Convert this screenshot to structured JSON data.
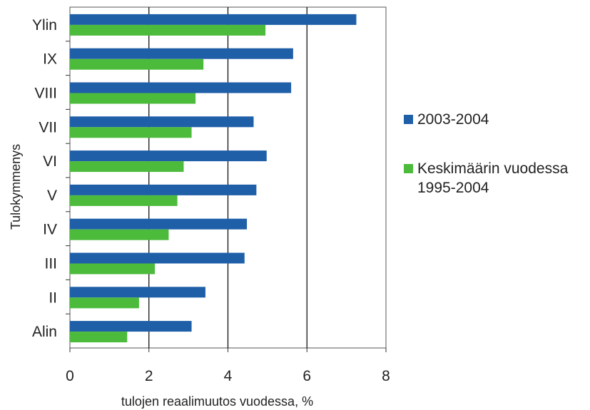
{
  "chart_data": {
    "type": "bar",
    "orientation": "horizontal",
    "title": "",
    "xlabel": "tulojen reaalimuutos vuodessa, %",
    "ylabel": "Tulokymmenys",
    "categories": [
      "Ylin",
      "IX",
      "VIII",
      "VII",
      "VI",
      "V",
      "IV",
      "III",
      "II",
      "Alin"
    ],
    "series": [
      {
        "name": "2003-2004",
        "color": "#1f5fa8",
        "values": [
          7.25,
          5.65,
          5.6,
          4.65,
          4.98,
          4.72,
          4.48,
          4.42,
          3.43,
          3.08
        ]
      },
      {
        "name": "Keskimäärin vuodessa\n1995-2004",
        "color": "#4cbb3c",
        "values": [
          4.95,
          3.38,
          3.18,
          3.08,
          2.88,
          2.72,
          2.5,
          2.15,
          1.75,
          1.45
        ]
      }
    ],
    "xlim": [
      0,
      8
    ],
    "xticks": [
      "0",
      "2",
      "4",
      "6",
      "8"
    ],
    "grid": "vertical",
    "legend_position": "right"
  }
}
